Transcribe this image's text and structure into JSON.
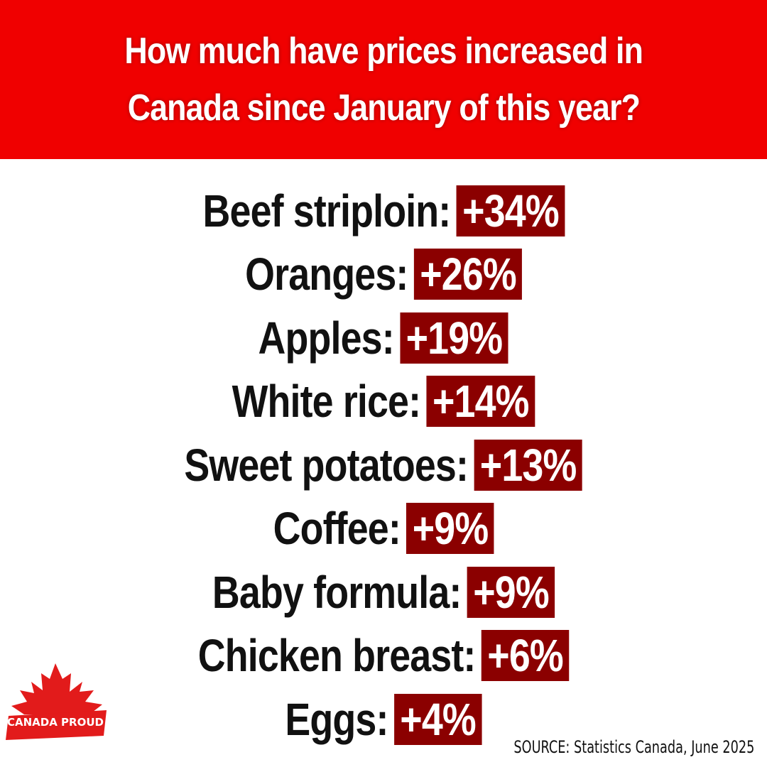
{
  "header": {
    "line1": "How much have prices increased in",
    "line2": "Canada since January of this year?",
    "background": "#f00000"
  },
  "items": [
    {
      "label": "Beef striploin:",
      "value": "+34%"
    },
    {
      "label": "Oranges:",
      "value": "+26%"
    },
    {
      "label": "Apples:",
      "value": "+19%"
    },
    {
      "label": "White rice:",
      "value": "+14%"
    },
    {
      "label": "Sweet potatoes:",
      "value": "+13%"
    },
    {
      "label": "Coffee:",
      "value": "+9%"
    },
    {
      "label": "Baby formula:",
      "value": "+9%"
    },
    {
      "label": "Chicken breast:",
      "value": "+6%"
    },
    {
      "label": "Eggs:",
      "value": "+4%"
    }
  ],
  "value_background": "#8b0000",
  "logo": {
    "text": "CANADA PROUD",
    "icon": "maple-leaf-icon",
    "color": "#e21b1b"
  },
  "source": "SOURCE: Statistics Canada, June 2025"
}
